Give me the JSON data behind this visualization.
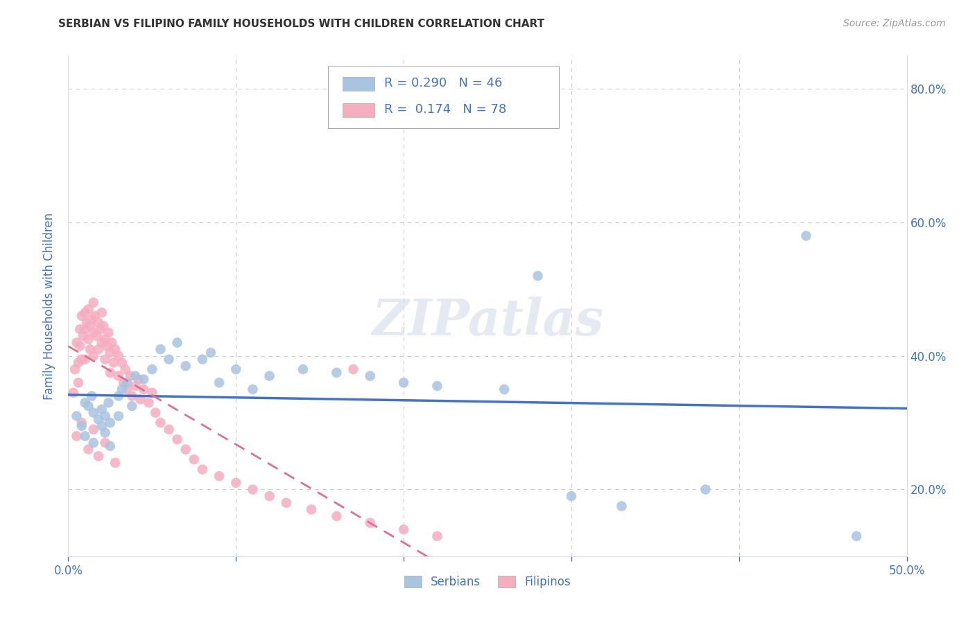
{
  "title": "SERBIAN VS FILIPINO FAMILY HOUSEHOLDS WITH CHILDREN CORRELATION CHART",
  "source": "Source: ZipAtlas.com",
  "ylabel": "Family Households with Children",
  "xlim": [
    0.0,
    0.5
  ],
  "ylim": [
    0.1,
    0.85
  ],
  "serbian_color": "#a8c4e0",
  "filipino_color": "#f5adc0",
  "serbian_line_color": "#4472c4",
  "filipino_line_color": "#e07090",
  "serbian_R": 0.29,
  "serbian_N": 46,
  "filipino_R": 0.174,
  "filipino_N": 78,
  "legend_color": "#4472c4",
  "watermark": "ZIPatlas",
  "grid_color": "#cccccc",
  "axis_label_color": "#4472c4",
  "serbian_x": [
    0.005,
    0.008,
    0.01,
    0.01,
    0.012,
    0.014,
    0.015,
    0.015,
    0.018,
    0.02,
    0.02,
    0.022,
    0.022,
    0.024,
    0.025,
    0.025,
    0.03,
    0.03,
    0.032,
    0.035,
    0.038,
    0.04,
    0.045,
    0.05,
    0.055,
    0.06,
    0.065,
    0.07,
    0.08,
    0.085,
    0.09,
    0.1,
    0.11,
    0.12,
    0.14,
    0.16,
    0.18,
    0.2,
    0.22,
    0.26,
    0.3,
    0.33,
    0.38,
    0.44,
    0.47,
    0.28
  ],
  "serbian_y": [
    0.31,
    0.295,
    0.33,
    0.28,
    0.325,
    0.34,
    0.27,
    0.315,
    0.305,
    0.32,
    0.295,
    0.31,
    0.285,
    0.33,
    0.3,
    0.265,
    0.34,
    0.31,
    0.35,
    0.36,
    0.325,
    0.37,
    0.365,
    0.38,
    0.41,
    0.395,
    0.42,
    0.385,
    0.395,
    0.405,
    0.36,
    0.38,
    0.35,
    0.37,
    0.38,
    0.375,
    0.37,
    0.36,
    0.355,
    0.35,
    0.19,
    0.175,
    0.2,
    0.58,
    0.13,
    0.52
  ],
  "filipino_x": [
    0.003,
    0.004,
    0.005,
    0.006,
    0.006,
    0.007,
    0.007,
    0.008,
    0.008,
    0.009,
    0.01,
    0.01,
    0.01,
    0.011,
    0.012,
    0.012,
    0.013,
    0.013,
    0.014,
    0.015,
    0.015,
    0.015,
    0.016,
    0.017,
    0.018,
    0.018,
    0.019,
    0.02,
    0.02,
    0.021,
    0.022,
    0.022,
    0.023,
    0.024,
    0.025,
    0.025,
    0.026,
    0.027,
    0.028,
    0.03,
    0.03,
    0.032,
    0.033,
    0.034,
    0.035,
    0.037,
    0.038,
    0.04,
    0.042,
    0.043,
    0.045,
    0.048,
    0.05,
    0.052,
    0.055,
    0.06,
    0.065,
    0.07,
    0.075,
    0.08,
    0.09,
    0.1,
    0.11,
    0.12,
    0.13,
    0.145,
    0.16,
    0.18,
    0.2,
    0.22,
    0.005,
    0.008,
    0.012,
    0.015,
    0.018,
    0.022,
    0.028,
    0.17
  ],
  "filipino_y": [
    0.345,
    0.38,
    0.42,
    0.39,
    0.36,
    0.44,
    0.415,
    0.46,
    0.395,
    0.43,
    0.465,
    0.44,
    0.395,
    0.45,
    0.47,
    0.425,
    0.445,
    0.41,
    0.455,
    0.48,
    0.435,
    0.4,
    0.46,
    0.43,
    0.45,
    0.41,
    0.44,
    0.465,
    0.42,
    0.445,
    0.425,
    0.395,
    0.415,
    0.435,
    0.405,
    0.375,
    0.42,
    0.39,
    0.41,
    0.4,
    0.37,
    0.39,
    0.36,
    0.38,
    0.35,
    0.37,
    0.34,
    0.355,
    0.365,
    0.335,
    0.35,
    0.33,
    0.345,
    0.315,
    0.3,
    0.29,
    0.275,
    0.26,
    0.245,
    0.23,
    0.22,
    0.21,
    0.2,
    0.19,
    0.18,
    0.17,
    0.16,
    0.15,
    0.14,
    0.13,
    0.28,
    0.3,
    0.26,
    0.29,
    0.25,
    0.27,
    0.24,
    0.38
  ]
}
